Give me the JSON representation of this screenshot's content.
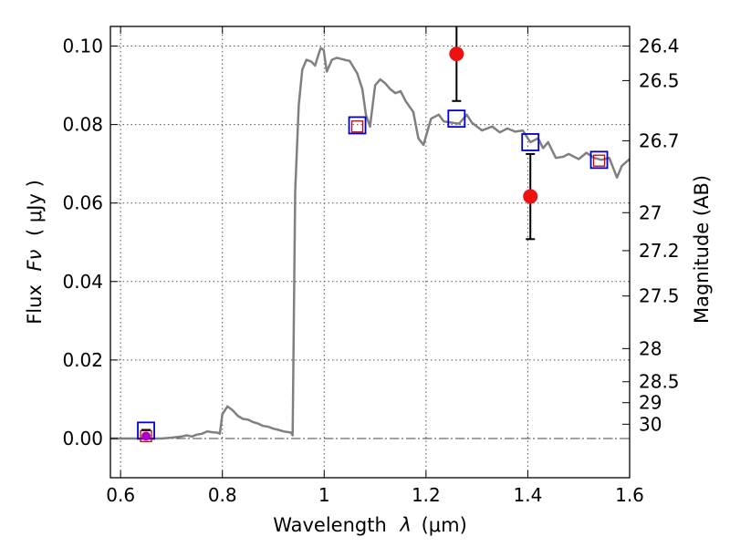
{
  "chart_data": {
    "type": "scatter",
    "xlabel_text": "Wavelength",
    "xlabel_symbol": "λ",
    "xlabel_unit": "(μm)",
    "ylabel_text": "Flux",
    "ylabel_symbol": "Fν",
    "ylabel_unit": "( μJy )",
    "y2label": "Magnitude (AB)",
    "xlim": [
      0.58,
      1.6
    ],
    "ylim": [
      -0.01,
      0.105
    ],
    "xticks": [
      0.6,
      0.8,
      1.0,
      1.2,
      1.4,
      1.6
    ],
    "xtick_labels": [
      "0.6",
      "0.8",
      "1",
      "1.2",
      "1.4",
      "1.6"
    ],
    "yticks": [
      0.0,
      0.02,
      0.04,
      0.06,
      0.08,
      0.1
    ],
    "ytick_labels": [
      "0.00",
      "0.02",
      "0.04",
      "0.06",
      "0.08",
      "0.10"
    ],
    "mag_ticks": [
      26.4,
      26.5,
      26.7,
      27,
      27.2,
      27.5,
      28,
      28.5,
      29,
      30
    ],
    "mag_tick_labels": [
      "26.4",
      "26.5",
      "26.7",
      "27",
      "27.2",
      "27.5",
      "28",
      "28.5",
      "29",
      "30"
    ],
    "grid": true,
    "zero_line": true,
    "series": [
      {
        "name": "model-spectrum",
        "kind": "line",
        "color": "#808080",
        "x": [
          0.58,
          0.6,
          0.62,
          0.64,
          0.66,
          0.68,
          0.7,
          0.72,
          0.73,
          0.74,
          0.75,
          0.76,
          0.77,
          0.78,
          0.79,
          0.795,
          0.8,
          0.81,
          0.82,
          0.83,
          0.84,
          0.85,
          0.86,
          0.87,
          0.88,
          0.89,
          0.9,
          0.91,
          0.92,
          0.935,
          0.938,
          0.943,
          0.95,
          0.957,
          0.965,
          0.975,
          0.982,
          0.988,
          0.993,
          0.999,
          1.005,
          1.015,
          1.025,
          1.04,
          1.05,
          1.065,
          1.075,
          1.082,
          1.09,
          1.1,
          1.11,
          1.12,
          1.13,
          1.14,
          1.15,
          1.16,
          1.175,
          1.185,
          1.195,
          1.21,
          1.225,
          1.235,
          1.25,
          1.265,
          1.28,
          1.29,
          1.31,
          1.33,
          1.345,
          1.36,
          1.375,
          1.39,
          1.405,
          1.42,
          1.43,
          1.44,
          1.455,
          1.47,
          1.48,
          1.5,
          1.515,
          1.53,
          1.545,
          1.56,
          1.575,
          1.585,
          1.6
        ],
        "y": [
          0.0,
          0.0,
          0.0,
          0.0,
          0.0,
          0.0,
          0.0002,
          0.0005,
          0.0008,
          0.0005,
          0.001,
          0.0012,
          0.0018,
          0.0016,
          0.0015,
          0.0012,
          0.0062,
          0.0082,
          0.0072,
          0.0058,
          0.005,
          0.0048,
          0.0042,
          0.0038,
          0.0032,
          0.003,
          0.0025,
          0.0022,
          0.0018,
          0.0015,
          0.0008,
          0.063,
          0.085,
          0.094,
          0.0965,
          0.096,
          0.095,
          0.0975,
          0.0995,
          0.099,
          0.0935,
          0.0965,
          0.097,
          0.0965,
          0.0962,
          0.093,
          0.089,
          0.0825,
          0.0795,
          0.09,
          0.0915,
          0.0905,
          0.089,
          0.088,
          0.0885,
          0.086,
          0.0832,
          0.0765,
          0.0748,
          0.0815,
          0.0825,
          0.0808,
          0.0805,
          0.0802,
          0.0825,
          0.0805,
          0.0785,
          0.0795,
          0.078,
          0.079,
          0.0782,
          0.0785,
          0.0755,
          0.0765,
          0.074,
          0.0755,
          0.0715,
          0.0718,
          0.0725,
          0.0712,
          0.0728,
          0.0715,
          0.071,
          0.0715,
          0.0665,
          0.0695,
          0.0712
        ]
      },
      {
        "name": "model-photometry",
        "kind": "open-square",
        "color": "#0000cc",
        "x": [
          0.65,
          1.065,
          1.26,
          1.405,
          1.54
        ],
        "y": [
          0.002,
          0.0798,
          0.0815,
          0.0755,
          0.071
        ]
      },
      {
        "name": "observed-upper-limits",
        "kind": "small-open-square",
        "color": "#cc0000",
        "x": [
          0.65,
          1.065,
          1.54
        ],
        "y": [
          0.0006,
          0.0795,
          0.0708
        ]
      },
      {
        "name": "observed-detections",
        "kind": "filled-circle-errorbar",
        "color": "#ee1111",
        "x": [
          0.65,
          1.26,
          1.405
        ],
        "y": [
          0.0006,
          0.098,
          0.0617
        ],
        "yerr_low": [
          0.0006,
          0.098,
          0.0617
        ],
        "yerr_high": [
          0.0022,
          0.086,
          0.0508
        ],
        "yerr_top": [
          0.0022,
          0.11,
          0.0725
        ]
      }
    ]
  }
}
